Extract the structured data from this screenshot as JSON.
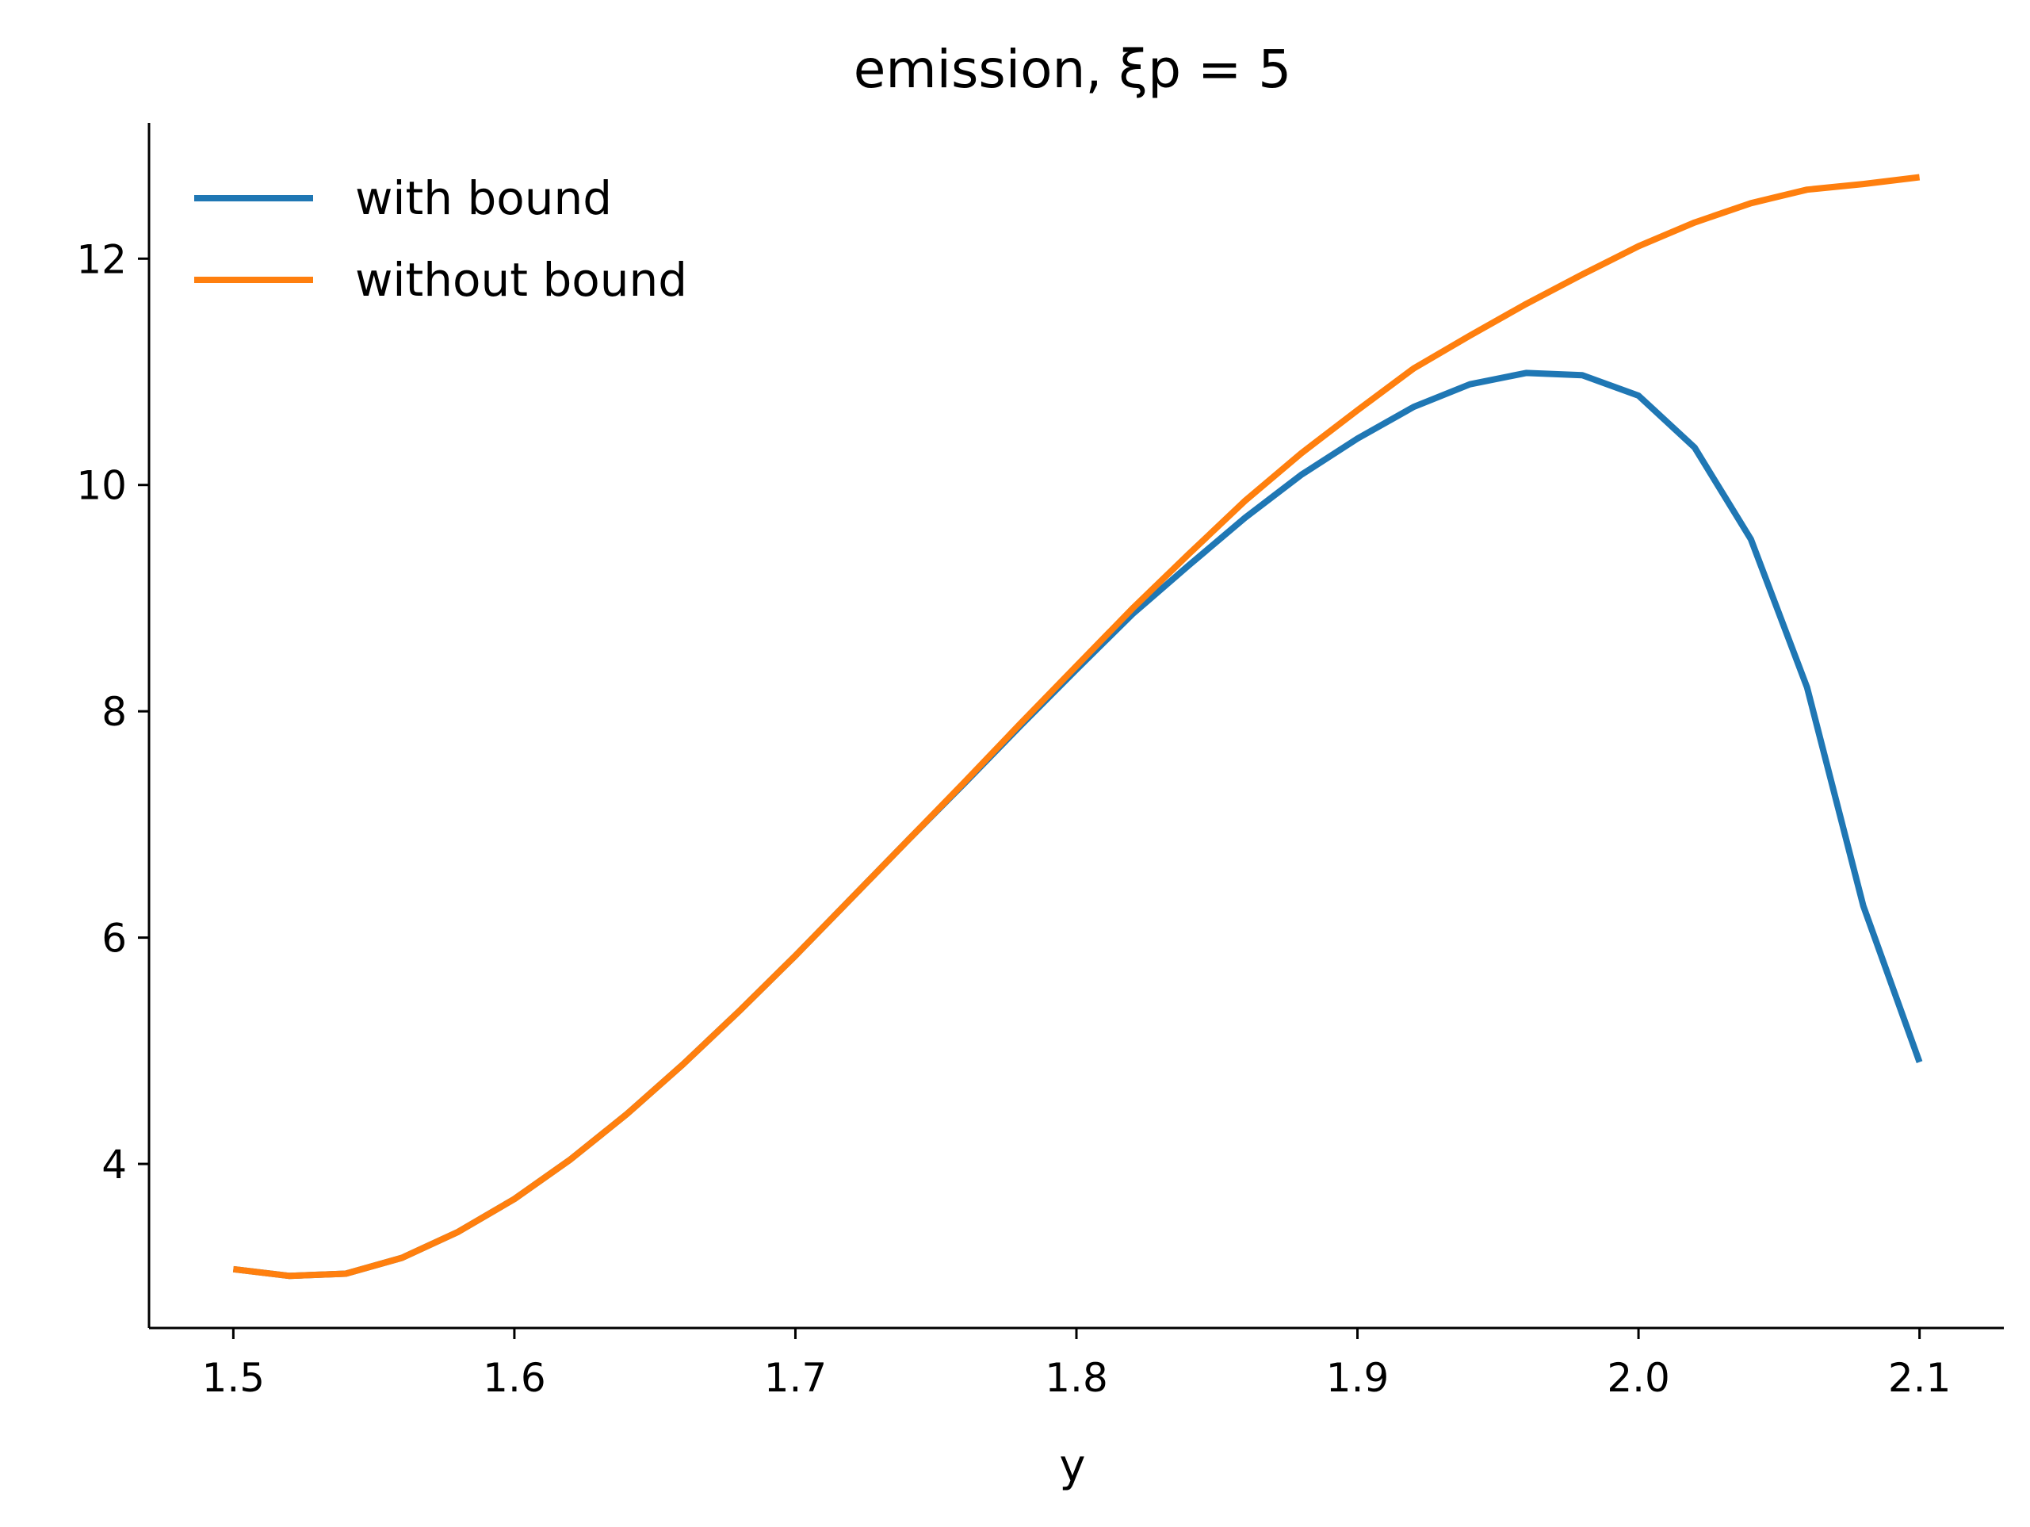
{
  "chart_data": {
    "type": "line",
    "title": "emission, ξp = 5",
    "xlabel": "y",
    "ylabel": "",
    "xlim": [
      1.47,
      2.13
    ],
    "ylim": [
      2.55,
      13.2
    ],
    "xticks": [
      1.5,
      1.6,
      1.7,
      1.8,
      1.9,
      2.0,
      2.1
    ],
    "xtick_labels": [
      "1.5",
      "1.6",
      "1.7",
      "1.8",
      "1.9",
      "2.0",
      "2.1"
    ],
    "yticks": [
      4,
      6,
      8,
      10,
      12
    ],
    "ytick_labels": [
      "4",
      "6",
      "8",
      "10",
      "12"
    ],
    "grid": false,
    "legend": "top-left",
    "x": [
      1.5,
      1.52,
      1.54,
      1.56,
      1.58,
      1.6,
      1.62,
      1.64,
      1.66,
      1.68,
      1.7,
      1.72,
      1.74,
      1.76,
      1.78,
      1.8,
      1.82,
      1.84,
      1.86,
      1.88,
      1.9,
      1.92,
      1.94,
      1.96,
      1.98,
      2.0,
      2.02,
      2.04,
      2.06,
      2.08,
      2.1
    ],
    "series": [
      {
        "name": "with bound",
        "color": "#1f77b4",
        "values": [
          3.07,
          3.01,
          3.03,
          3.17,
          3.4,
          3.69,
          4.04,
          4.44,
          4.88,
          5.35,
          5.84,
          6.35,
          6.86,
          7.36,
          7.87,
          8.37,
          8.86,
          9.29,
          9.71,
          10.09,
          10.41,
          10.69,
          10.89,
          10.99,
          10.97,
          10.79,
          10.33,
          9.52,
          8.21,
          6.28,
          4.9
        ]
      },
      {
        "name": "without bound",
        "color": "#ff7f0e",
        "values": [
          3.07,
          3.01,
          3.03,
          3.17,
          3.4,
          3.69,
          4.04,
          4.44,
          4.88,
          5.35,
          5.84,
          6.35,
          6.86,
          7.37,
          7.89,
          8.4,
          8.91,
          9.39,
          9.86,
          10.28,
          10.66,
          11.03,
          11.32,
          11.6,
          11.86,
          12.11,
          12.32,
          12.49,
          12.61,
          12.66,
          12.72
        ]
      }
    ]
  }
}
